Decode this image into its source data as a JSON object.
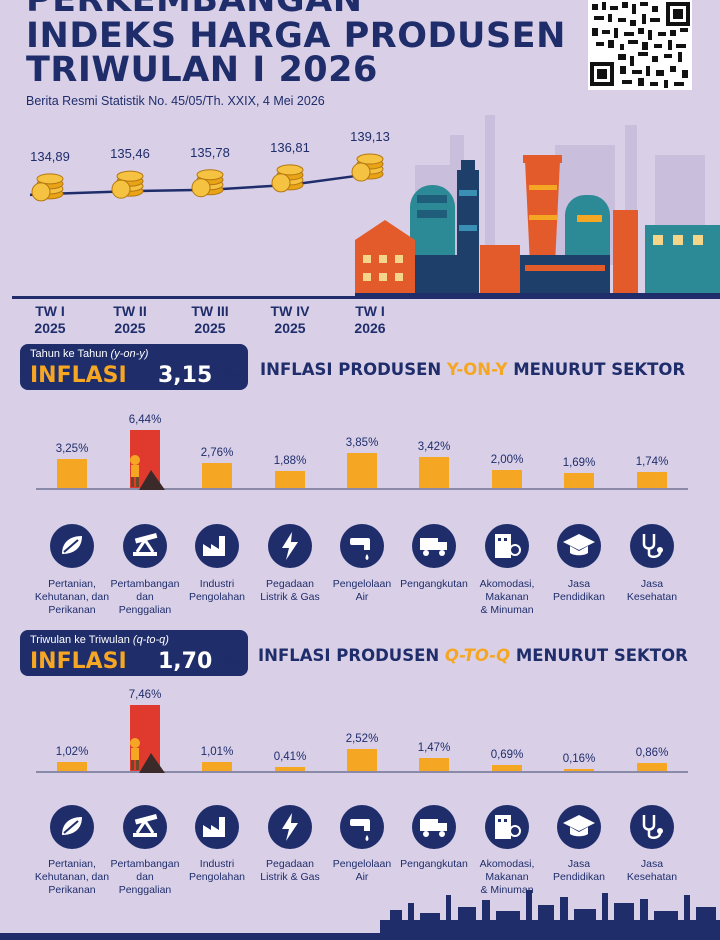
{
  "header": {
    "title_line1": "PERKEMBANGAN",
    "title_line2": "INDEKS HARGA PRODUSEN",
    "title_line3": "TRIWULAN I 2026",
    "subtitle": "Berita Resmi Statistik No. 45/05/Th. XXIX, 4 Mei 2026"
  },
  "colors": {
    "navy": "#1f2d6b",
    "orange": "#f5a623",
    "red": "#e03a2e",
    "background": "#d9d0e8"
  },
  "chart_data": [
    {
      "type": "line",
      "categories": [
        "TW I\n2025",
        "TW II\n2025",
        "TW III\n2025",
        "TW IV\n2025",
        "TW I\n2026"
      ],
      "values": [
        134.89,
        135.46,
        135.78,
        136.81,
        139.13
      ],
      "value_labels": [
        "134,89",
        "135,46",
        "135,78",
        "136,81",
        "139,13"
      ],
      "tick_lines": [
        [
          "TW I",
          "2025"
        ],
        [
          "TW II",
          "2025"
        ],
        [
          "TW III",
          "2025"
        ],
        [
          "TW IV",
          "2025"
        ],
        [
          "TW I",
          "2026"
        ]
      ]
    },
    {
      "type": "bar",
      "categories": [
        "Pertanian, Kehutanan, dan Perikanan",
        "Pertambangan dan Penggalian",
        "Industri Pengolahan",
        "Pegadaan Listrik & Gas",
        "Pengelolaan Air",
        "Pengangkutan",
        "Akomodasi, Makanan & Minuman",
        "Jasa Pendidikan",
        "Jasa Kesehatan"
      ],
      "values": [
        3.25,
        6.44,
        2.76,
        1.88,
        3.85,
        3.42,
        2.0,
        1.69,
        1.74
      ],
      "value_labels": [
        "3,25%",
        "6,44%",
        "2,76%",
        "1,88%",
        "3,85%",
        "3,42%",
        "2,00%",
        "1,69%",
        "1,74%"
      ],
      "highlight_index": 1
    },
    {
      "type": "bar",
      "categories": [
        "Pertanian, Kehutanan, dan Perikanan",
        "Pertambangan dan Penggalian",
        "Industri Pengolahan",
        "Pegadaan Listrik & Gas",
        "Pengelolaan Air",
        "Pengangkutan",
        "Akomodasi, Makanan & Minuman",
        "Jasa Pendidikan",
        "Jasa Kesehatan"
      ],
      "values": [
        1.02,
        7.46,
        1.01,
        0.41,
        2.52,
        1.47,
        0.69,
        0.16,
        0.86
      ],
      "value_labels": [
        "1,02%",
        "7,46%",
        "1,01%",
        "0,41%",
        "2,52%",
        "1,47%",
        "0,69%",
        "0,16%",
        "0,86%"
      ],
      "highlight_index": 1
    }
  ],
  "yoy": {
    "caption_plain": "Tahun ke Tahun ",
    "caption_italic": "(y-on-y)",
    "word": "INFLASI",
    "value": "3,15",
    "unit": "%",
    "title_pre": "INFLASI PRODUSEN ",
    "title_hl": "Y-ON-Y",
    "title_post": " MENURUT SEKTOR"
  },
  "qtq": {
    "caption_plain": "Triwulan ke Triwulan ",
    "caption_italic": "(q-to-q)",
    "word": "INFLASI",
    "value": "1,70",
    "unit": "%",
    "title_pre": "INFLASI PRODUSEN ",
    "title_hl": "Q-TO-Q",
    "title_post": " MENURUT SEKTOR"
  },
  "sectors": [
    {
      "lines": [
        "Pertanian,",
        "Kehutanan, dan",
        "Perikanan"
      ],
      "icon": "leaf-icon"
    },
    {
      "lines": [
        "Pertambangan",
        "dan",
        "Penggalian"
      ],
      "icon": "oil-pump-icon"
    },
    {
      "lines": [
        "Industri",
        "Pengolahan"
      ],
      "icon": "factory-icon"
    },
    {
      "lines": [
        "Pegadaan",
        "Listrik & Gas"
      ],
      "icon": "electric-gas-icon"
    },
    {
      "lines": [
        "Pengelolaan",
        "Air"
      ],
      "icon": "water-tap-icon"
    },
    {
      "lines": [
        "Pengangkutan"
      ],
      "icon": "truck-icon"
    },
    {
      "lines": [
        "Akomodasi,",
        "Makanan",
        "& Minuman"
      ],
      "icon": "hotel-dining-icon"
    },
    {
      "lines": [
        "Jasa",
        "Pendidikan"
      ],
      "icon": "graduation-cap-icon"
    },
    {
      "lines": [
        "Jasa",
        "Kesehatan"
      ],
      "icon": "stethoscope-icon"
    }
  ]
}
